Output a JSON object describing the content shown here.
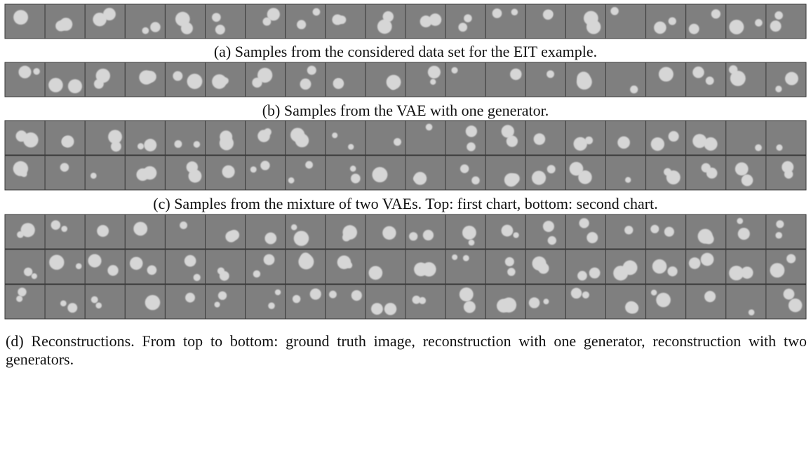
{
  "figure": {
    "panels": [
      {
        "caption": "(a) Samples from the considered data set for the EIT example."
      },
      {
        "caption": "(b) Samples from the VAE with one generator."
      },
      {
        "caption": "(c) Samples from the mixture of two VAEs. Top: first chart, bottom: second chart."
      },
      {
        "caption": "(d) Reconstructions. From top to bottom: ground truth image, reconstruction with one generator, reconstruction with two generators."
      }
    ]
  }
}
